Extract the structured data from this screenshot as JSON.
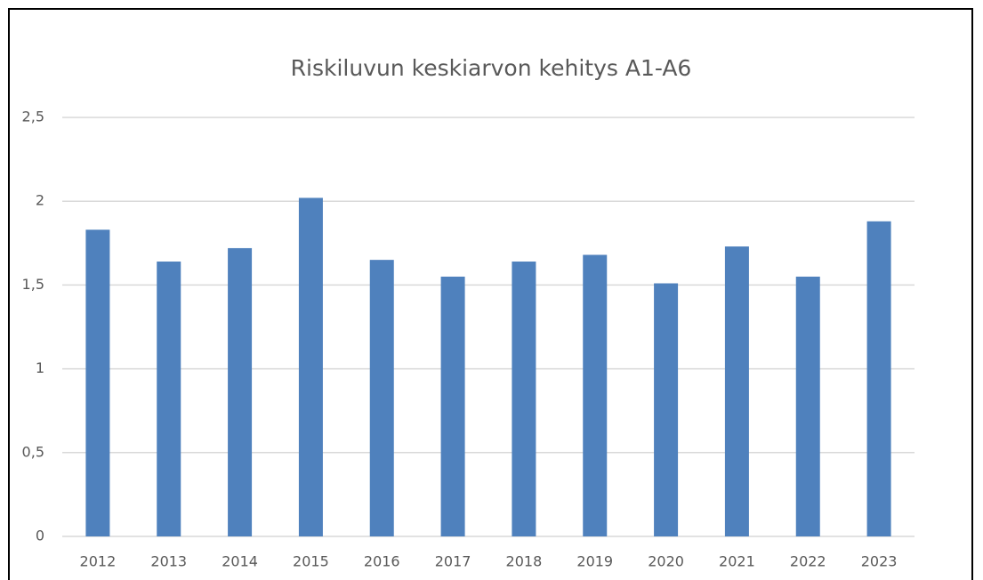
{
  "chart_data": {
    "type": "bar",
    "title": "Riskiluvun keskiarvon kehitys A1-A6",
    "categories": [
      "2012",
      "2013",
      "2014",
      "2015",
      "2016",
      "2017",
      "2018",
      "2019",
      "2020",
      "2021",
      "2022",
      "2023"
    ],
    "values": [
      1.83,
      1.64,
      1.72,
      2.02,
      1.65,
      1.55,
      1.64,
      1.68,
      1.51,
      1.73,
      1.55,
      1.88
    ],
    "color": "#4f81bd",
    "ylim": [
      0,
      2.5
    ],
    "yticks": [
      0,
      {
        "value": 0.5,
        "label": "0,5"
      },
      1,
      {
        "value": 1.5,
        "label": "1,5"
      },
      2,
      {
        "value": 2.5,
        "label": "2,5"
      }
    ],
    "grid": true
  }
}
